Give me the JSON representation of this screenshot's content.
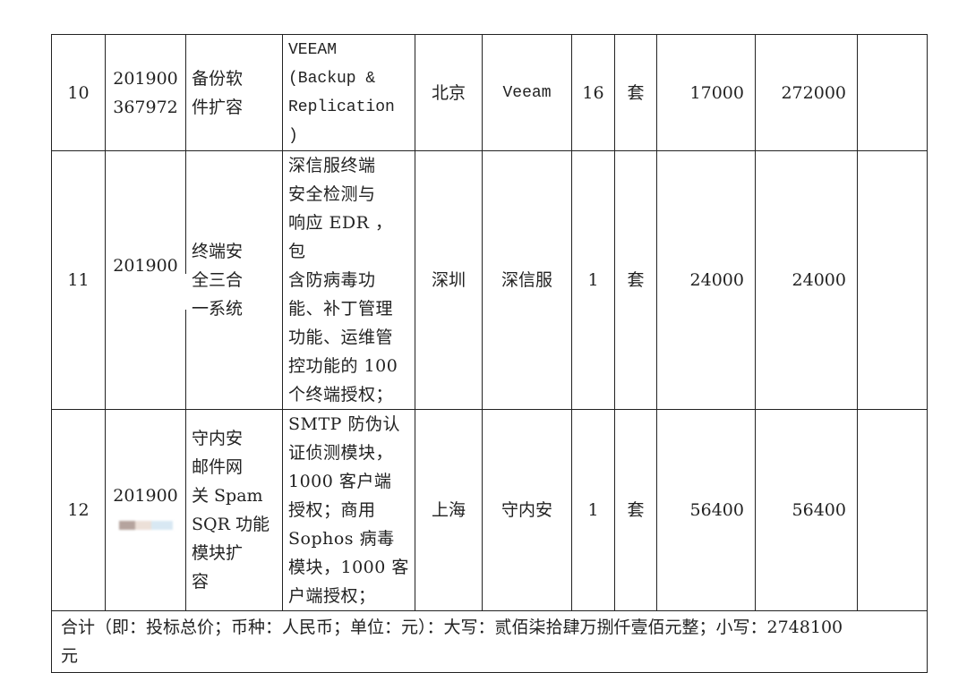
{
  "rows": [
    {
      "no": "10",
      "id": "201900\n367972",
      "name": "备份软\n件扩容",
      "desc": "VEEAM\n (Backup &\nReplication\n )",
      "place": "北京",
      "brand": "Veeam",
      "qty": "16",
      "unit": "套",
      "price": "17000",
      "total": "272000",
      "note": ""
    },
    {
      "no": "11",
      "id": "201900",
      "name": "终端安\n全三合\n一系统",
      "desc": "深信服终端\n安全检测与\n响应 EDR ，包\n含防病毒功\n能、补丁管理\n功能、运维管\n控功能的 100\n个终端授权；",
      "place": "深圳",
      "brand": "深信服",
      "qty": "1",
      "unit": "套",
      "price": "24000",
      "total": "24000",
      "note": ""
    },
    {
      "no": "12",
      "id": "201900",
      "name": "守内安\n邮件网\n关 Spam\nSQR 功能\n模块扩\n容",
      "desc": "SMTP 防伪认\n证侦测模块，\n1000 客户端\n授权；商用\nSophos 病毒\n模块，1000 客\n户端授权；",
      "place": "上海",
      "brand": "守内安",
      "qty": "1",
      "unit": "套",
      "price": "56400",
      "total": "56400",
      "note": ""
    }
  ],
  "summary": "合计（即：投标总价；币种：人民币；单位：元）：大写：贰佰柒拾肆万捌仟壹佰元整；小写：2748100\n元"
}
